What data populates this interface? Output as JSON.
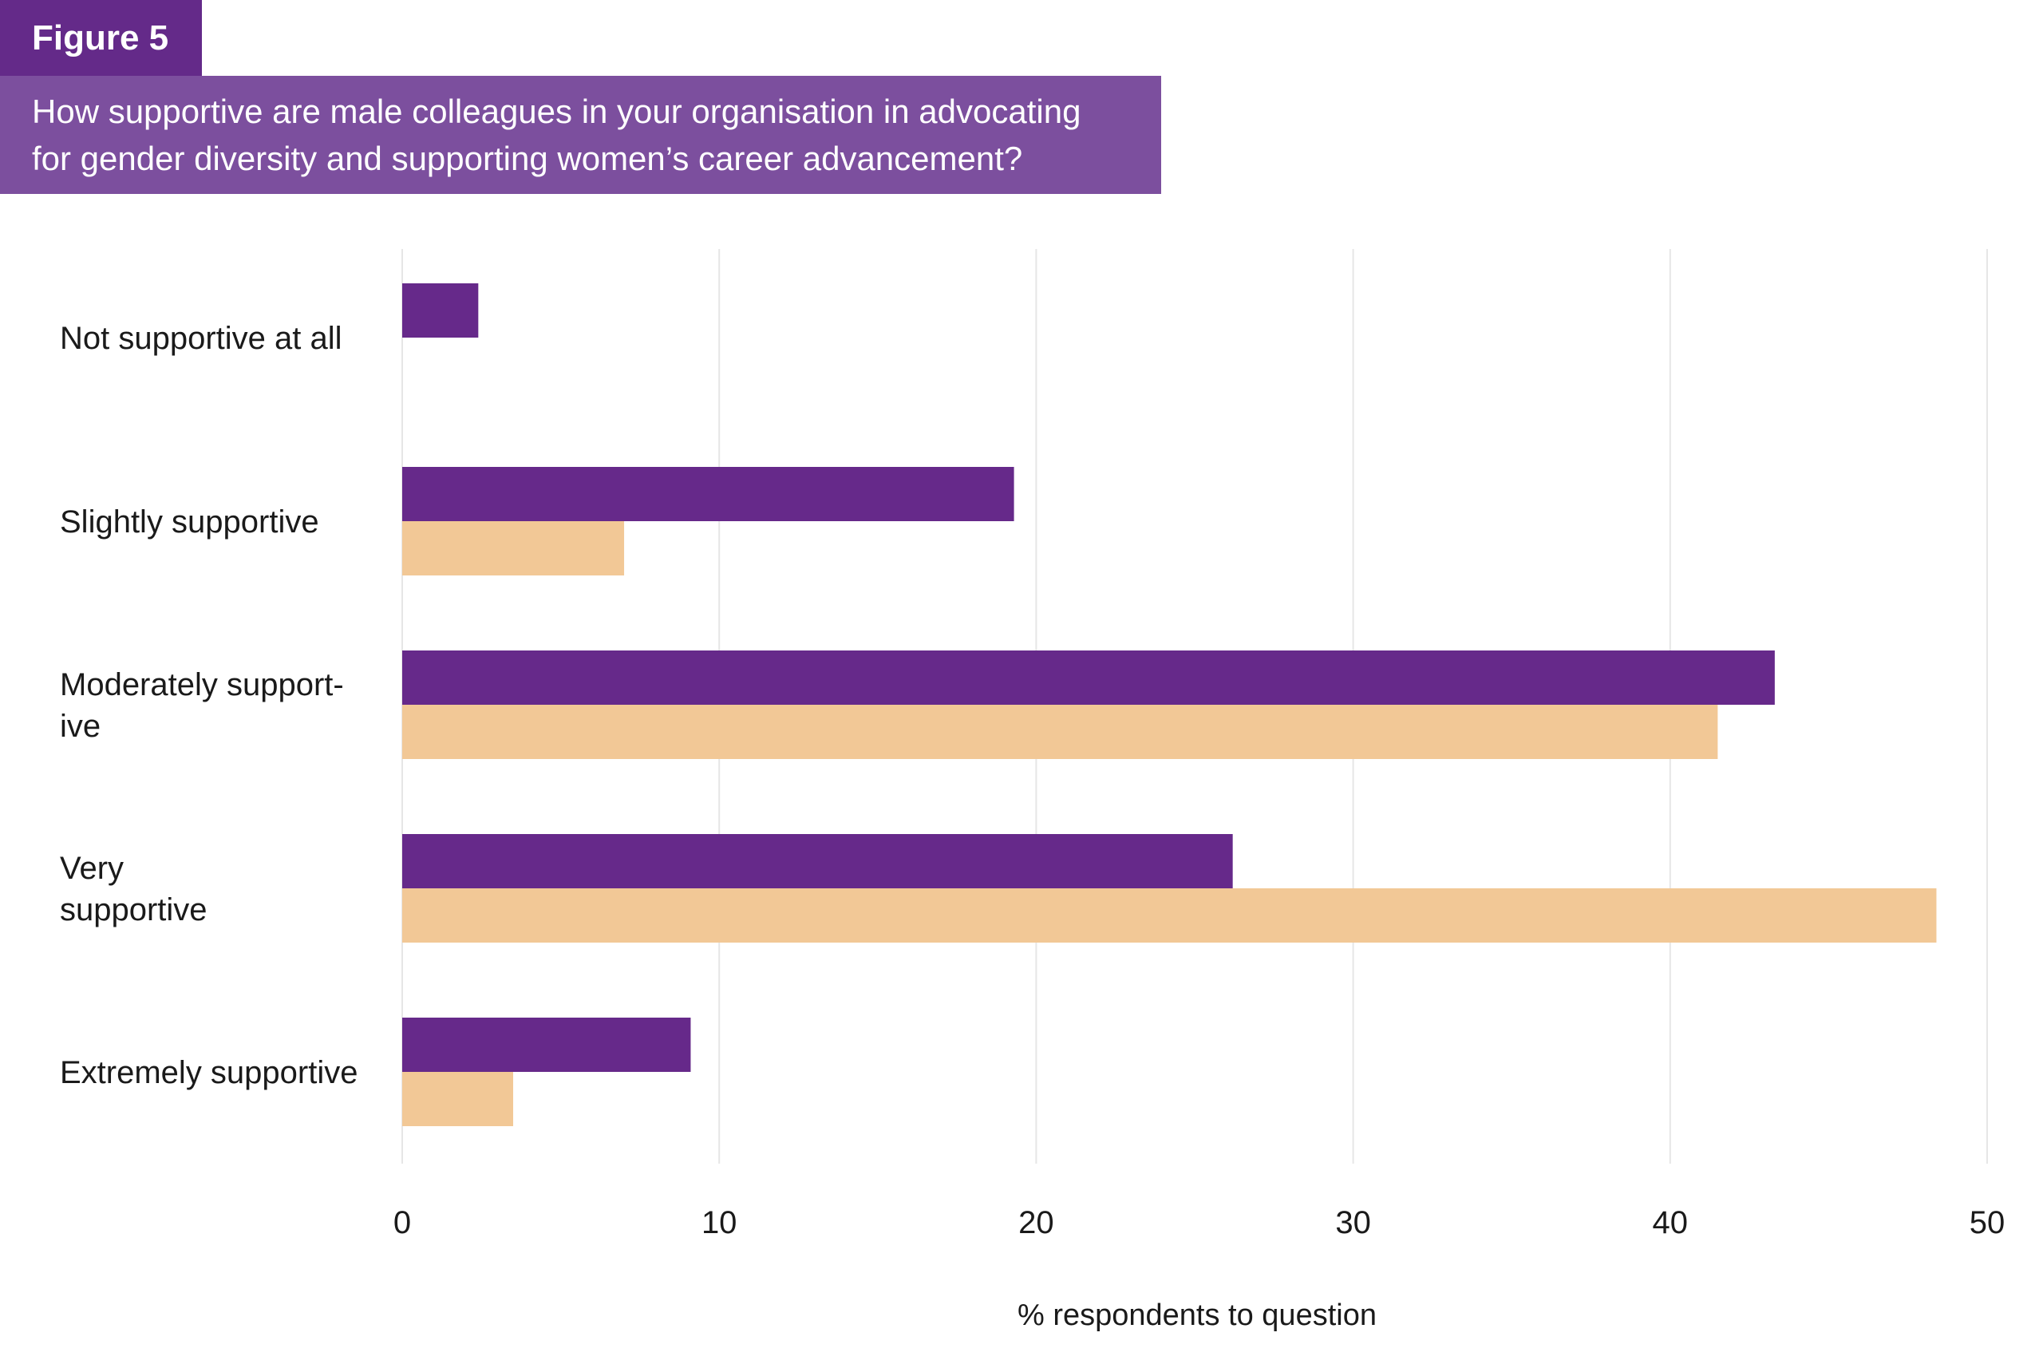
{
  "figure_label": "Figure 5",
  "title_lines": [
    "How supportive are male colleagues in your organisation in advocating",
    "for gender diversity and supporting women’s career advancement?"
  ],
  "colors": {
    "series_a": "#66298a",
    "series_b": "#f2c896",
    "grid": "#e6e6e6",
    "label_bg": "#642a89",
    "title_bg": "#7c4f9e"
  },
  "chart_data": {
    "type": "bar",
    "orientation": "horizontal",
    "categories": [
      [
        "Not supportive at all"
      ],
      [
        "Slightly supportive"
      ],
      [
        "Moderately support-",
        "ive"
      ],
      [
        "Very",
        "supportive"
      ],
      [
        "Extremely supportive"
      ]
    ],
    "series": [
      {
        "values": [
          2.4,
          19.3,
          43.3,
          26.2,
          9.1
        ]
      },
      {
        "values": [
          0,
          7.0,
          41.5,
          48.4,
          3.5
        ]
      }
    ],
    "xlim": [
      0,
      50
    ],
    "xticks": [
      0,
      10,
      20,
      30,
      40,
      50
    ],
    "xlabel": "% respondents to question",
    "grid": true
  }
}
